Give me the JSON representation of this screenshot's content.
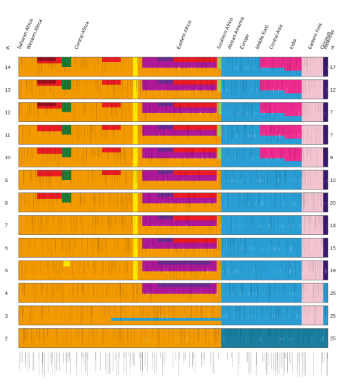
{
  "chart_data": {
    "type": "bar",
    "regions": [
      "Saharan Africa",
      "Western Africa",
      "Central Africa",
      "Eastern Africa",
      "Southern Africa",
      "African America",
      "Europe",
      "Middle East",
      "Central Asia",
      "India",
      "Eastern Asia",
      "Oceania",
      "Americas"
    ],
    "left_axis_label": "K",
    "right_axis_label": "F",
    "rows": [
      {
        "K": "14",
        "F": "17"
      },
      {
        "K": "13",
        "F": "12"
      },
      {
        "K": "12",
        "F": "7"
      },
      {
        "K": "11",
        "F": "7"
      },
      {
        "K": "10",
        "F": "9"
      },
      {
        "K": "9",
        "F": "10"
      },
      {
        "K": "8",
        "F": "20"
      },
      {
        "K": "7",
        "F": "14"
      },
      {
        "K": "6",
        "F": "15"
      },
      {
        "K": "5",
        "F": "19"
      },
      {
        "K": "4",
        "F": "25"
      },
      {
        "K": "3",
        "F": "25"
      },
      {
        "K": "2",
        "F": "25"
      }
    ],
    "cluster_colors": {
      "african": "#f39a00",
      "maroon": "#9a0f1e",
      "red": "#ee1c24",
      "green": "#1f7a36",
      "magenta": "#b0189a",
      "purple": "#6a2c91",
      "blue": "#2a9fd6",
      "pink": "#ef2b8f",
      "lightpink": "#f2c4d0",
      "yellow": "#ffe800",
      "lightgreen": "#9bd35a",
      "darkpurple": "#3a1a6e",
      "teal": "#1a7fa0"
    },
    "ylim": [
      0,
      1
    ],
    "grid": false,
    "legend": "none"
  }
}
